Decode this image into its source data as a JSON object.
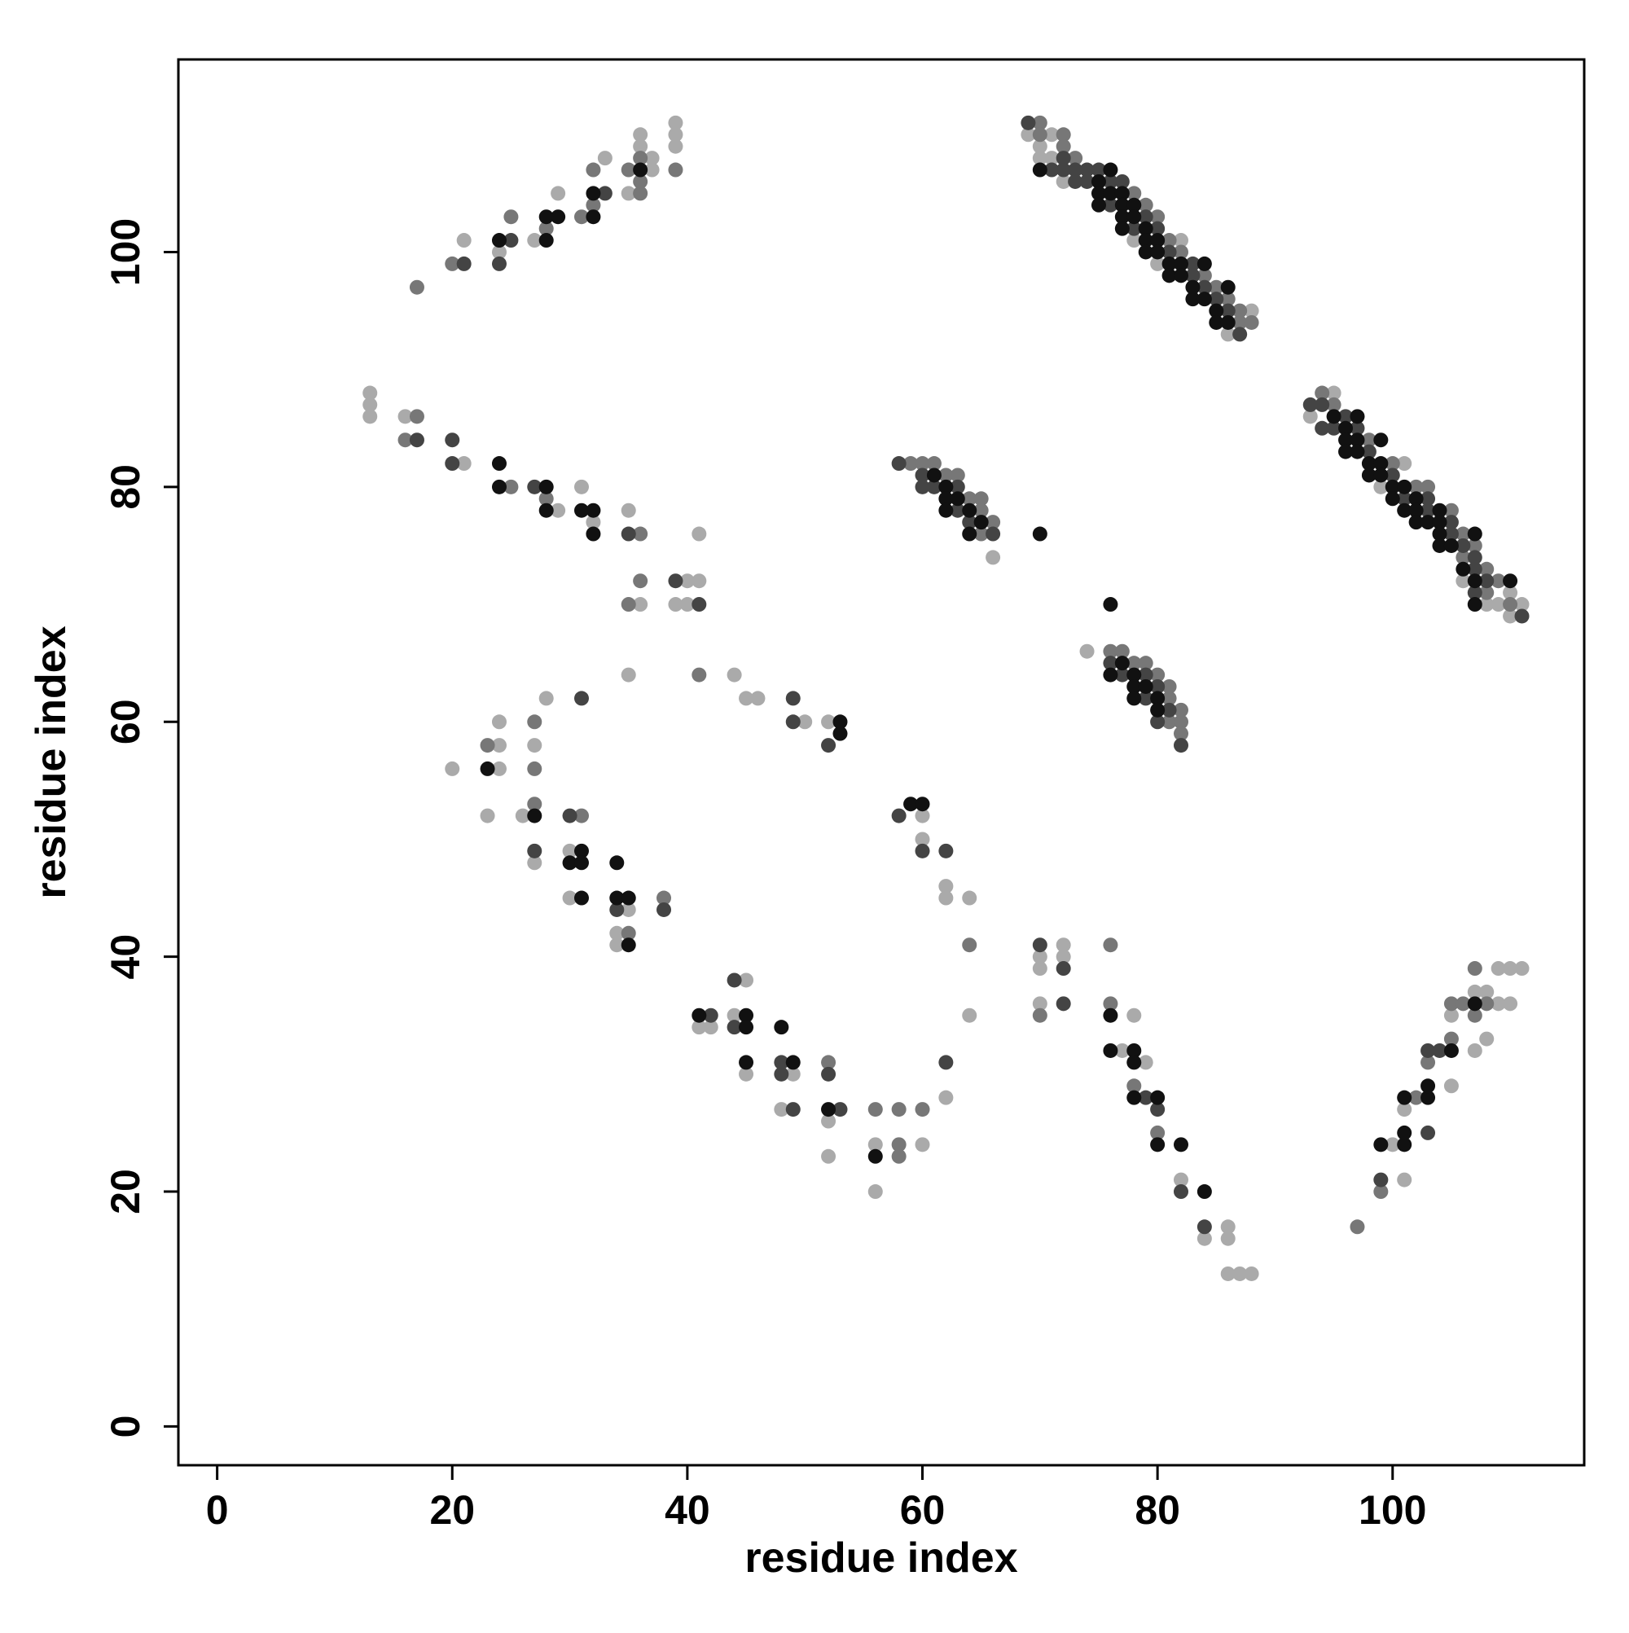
{
  "chart_data": {
    "type": "scatter",
    "xlabel": "residue index",
    "ylabel": "residue index",
    "xlim": [
      -3.3,
      116.3
    ],
    "ylim": [
      -3.3,
      116.4
    ],
    "xticks": [
      0,
      20,
      40,
      60,
      80,
      100
    ],
    "yticks": [
      0,
      20,
      40,
      60,
      80,
      100
    ],
    "grid": false,
    "series": [
      {
        "color": "#aaaaaa",
        "x": [
          21,
          24,
          27,
          29,
          33,
          35,
          36,
          36,
          37,
          37,
          39,
          39,
          39,
          13,
          13,
          13,
          16,
          21,
          29,
          31,
          32,
          35,
          36,
          39,
          40,
          40,
          41,
          41,
          35,
          44,
          45,
          46,
          50,
          52,
          28,
          20,
          24,
          24,
          24,
          27,
          23,
          26,
          27,
          30,
          30,
          35,
          34,
          34,
          41,
          42,
          45,
          44,
          45,
          49,
          48,
          52,
          52,
          56,
          60,
          56,
          62,
          60,
          60,
          62,
          62,
          64,
          64,
          66,
          74,
          69,
          71,
          70,
          70,
          71,
          72,
          78,
          82,
          80,
          88,
          86,
          93,
          95,
          101,
          99,
          106,
          110,
          108,
          109,
          111,
          110,
          70,
          70,
          72,
          72,
          70,
          78,
          77,
          79,
          82,
          84,
          86,
          86,
          86,
          87,
          88,
          100,
          101,
          101,
          105,
          105,
          109,
          110,
          108,
          107,
          107,
          108,
          109,
          110,
          111
        ],
        "values": [
          101,
          100,
          101,
          105,
          108,
          105,
          109,
          110,
          107,
          108,
          109,
          110,
          111,
          86,
          87,
          88,
          86,
          82,
          78,
          80,
          77,
          78,
          70,
          70,
          70,
          72,
          72,
          76,
          64,
          64,
          62,
          62,
          60,
          60,
          62,
          56,
          58,
          56,
          60,
          58,
          52,
          52,
          48,
          49,
          45,
          44,
          42,
          41,
          34,
          34,
          38,
          35,
          30,
          30,
          27,
          26,
          23,
          24,
          24,
          20,
          28,
          52,
          50,
          46,
          45,
          45,
          35,
          74,
          66,
          110,
          110,
          109,
          108,
          108,
          106,
          101,
          101,
          99,
          95,
          93,
          86,
          88,
          82,
          80,
          72,
          71,
          70,
          70,
          70,
          69,
          40,
          39,
          41,
          40,
          36,
          35,
          32,
          31,
          21,
          16,
          17,
          16,
          13,
          13,
          13,
          24,
          21,
          27,
          29,
          35,
          36,
          36,
          33,
          32,
          37,
          37,
          39,
          39,
          39
        ]
      },
      {
        "color": "#777777",
        "x": [
          17,
          20,
          25,
          28,
          31,
          32,
          32,
          35,
          36,
          36,
          36,
          39,
          16,
          17,
          25,
          28,
          36,
          35,
          36,
          41,
          23,
          27,
          27,
          27,
          31,
          35,
          38,
          52,
          56,
          58,
          60,
          58,
          58,
          64,
          59,
          60,
          61,
          62,
          63,
          64,
          65,
          65,
          66,
          65,
          76,
          77,
          78,
          79,
          80,
          81,
          81,
          82,
          81,
          82,
          82,
          70,
          70,
          72,
          72,
          73,
          78,
          79,
          80,
          81,
          82,
          84,
          85,
          86,
          87,
          87,
          88,
          94,
          95,
          98,
          100,
          102,
          103,
          105,
          106,
          107,
          106,
          108,
          109,
          108,
          110,
          70,
          76,
          76,
          78,
          80,
          97,
          99,
          102,
          103,
          105,
          105,
          106,
          108,
          107,
          107
        ],
        "values": [
          97,
          99,
          103,
          102,
          103,
          104,
          107,
          107,
          105,
          106,
          108,
          107,
          84,
          86,
          80,
          79,
          76,
          70,
          72,
          64,
          58,
          60,
          56,
          53,
          52,
          42,
          45,
          31,
          27,
          27,
          27,
          24,
          23,
          41,
          82,
          82,
          82,
          81,
          81,
          79,
          79,
          78,
          77,
          76,
          66,
          66,
          65,
          65,
          64,
          63,
          62,
          61,
          60,
          60,
          59,
          111,
          110,
          110,
          109,
          108,
          105,
          104,
          103,
          101,
          100,
          98,
          97,
          96,
          95,
          94,
          94,
          88,
          87,
          84,
          82,
          80,
          80,
          78,
          76,
          75,
          74,
          73,
          72,
          71,
          70,
          35,
          41,
          36,
          29,
          25,
          17,
          20,
          28,
          31,
          33,
          36,
          36,
          36,
          35,
          39
        ]
      },
      {
        "color": "#444444",
        "x": [
          21,
          24,
          25,
          33,
          17,
          20,
          20,
          27,
          35,
          39,
          41,
          49,
          49,
          52,
          31,
          27,
          30,
          34,
          38,
          42,
          44,
          44,
          48,
          48,
          49,
          52,
          53,
          62,
          58,
          60,
          62,
          58,
          60,
          60,
          61,
          63,
          63,
          64,
          66,
          76,
          77,
          79,
          80,
          79,
          81,
          80,
          82,
          69,
          72,
          71,
          72,
          73,
          74,
          75,
          73,
          74,
          76,
          77,
          76,
          79,
          78,
          80,
          81,
          83,
          83,
          84,
          85,
          86,
          87,
          93,
          94,
          94,
          95,
          96,
          97,
          98,
          100,
          101,
          103,
          103,
          105,
          105,
          106,
          107,
          107,
          108,
          107,
          111,
          70,
          72,
          72,
          79,
          80,
          82,
          84,
          99,
          103,
          103,
          104
        ],
        "values": [
          99,
          99,
          101,
          105,
          84,
          82,
          84,
          80,
          76,
          72,
          70,
          62,
          60,
          58,
          62,
          49,
          52,
          44,
          44,
          35,
          38,
          34,
          31,
          30,
          27,
          30,
          27,
          31,
          52,
          49,
          49,
          82,
          81,
          80,
          80,
          80,
          78,
          77,
          76,
          65,
          64,
          64,
          63,
          62,
          61,
          60,
          58,
          111,
          108,
          107,
          107,
          107,
          107,
          107,
          106,
          106,
          106,
          106,
          104,
          103,
          102,
          102,
          100,
          99,
          98,
          97,
          96,
          95,
          93,
          87,
          87,
          85,
          85,
          86,
          85,
          83,
          81,
          79,
          79,
          78,
          77,
          76,
          75,
          74,
          73,
          72,
          71,
          69,
          41,
          39,
          36,
          28,
          27,
          20,
          17,
          21,
          25,
          32,
          32
        ]
      },
      {
        "color": "#111111",
        "x": [
          24,
          28,
          28,
          29,
          32,
          32,
          36,
          24,
          24,
          28,
          28,
          31,
          32,
          32,
          53,
          53,
          23,
          27,
          31,
          30,
          31,
          31,
          34,
          34,
          35,
          35,
          41,
          45,
          45,
          45,
          48,
          49,
          52,
          56,
          59,
          60,
          61,
          62,
          62,
          63,
          62,
          64,
          65,
          64,
          70,
          76,
          77,
          76,
          78,
          78,
          79,
          78,
          80,
          80,
          70,
          76,
          75,
          75,
          76,
          77,
          75,
          77,
          78,
          77,
          78,
          77,
          79,
          79,
          80,
          79,
          80,
          81,
          82,
          84,
          81,
          82,
          83,
          86,
          83,
          84,
          85,
          85,
          86,
          97,
          95,
          96,
          96,
          97,
          96,
          97,
          99,
          98,
          99,
          98,
          99,
          100,
          101,
          100,
          102,
          101,
          102,
          104,
          102,
          103,
          104,
          104,
          107,
          104,
          105,
          106,
          107,
          110,
          107,
          76,
          76,
          78,
          78,
          78,
          80,
          80,
          82,
          84,
          99,
          101,
          101,
          101,
          103,
          103,
          105,
          107
        ],
        "values": [
          101,
          101,
          103,
          103,
          103,
          105,
          107,
          80,
          82,
          78,
          80,
          78,
          76,
          78,
          59,
          60,
          56,
          52,
          49,
          48,
          48,
          45,
          48,
          45,
          45,
          41,
          35,
          35,
          34,
          31,
          34,
          31,
          27,
          23,
          53,
          53,
          81,
          80,
          79,
          79,
          78,
          78,
          77,
          76,
          76,
          70,
          65,
          64,
          64,
          63,
          63,
          62,
          62,
          61,
          107,
          107,
          106,
          105,
          105,
          105,
          104,
          104,
          104,
          103,
          103,
          102,
          102,
          101,
          101,
          100,
          100,
          99,
          99,
          99,
          98,
          98,
          97,
          97,
          96,
          96,
          95,
          94,
          94,
          86,
          86,
          85,
          84,
          84,
          83,
          83,
          84,
          82,
          82,
          81,
          81,
          80,
          80,
          79,
          79,
          78,
          78,
          78,
          77,
          77,
          77,
          76,
          76,
          75,
          75,
          73,
          72,
          72,
          70,
          35,
          32,
          32,
          31,
          28,
          28,
          24,
          24,
          20,
          24,
          24,
          25,
          28,
          28,
          29,
          32,
          36
        ]
      }
    ]
  }
}
